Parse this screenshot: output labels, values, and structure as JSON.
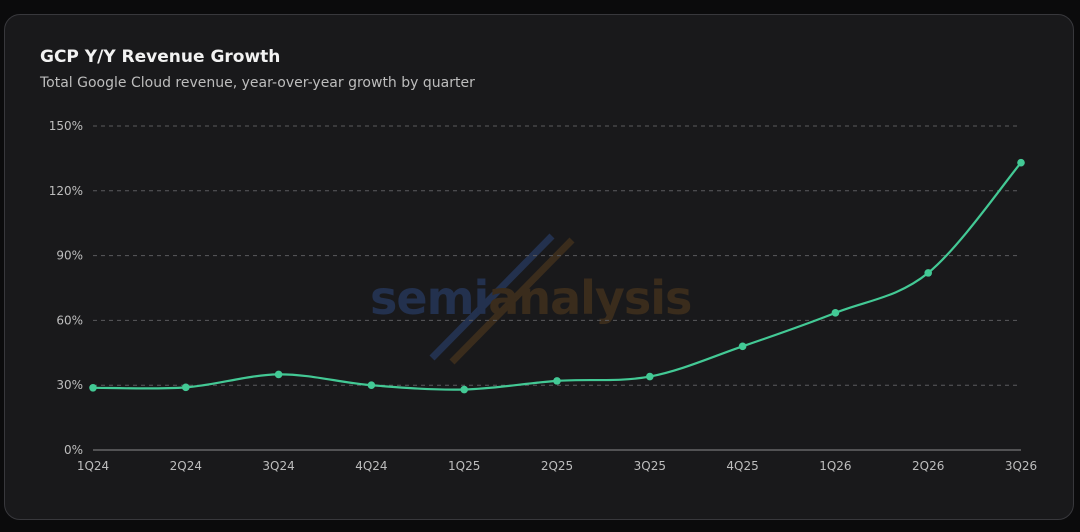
{
  "header": {
    "title": "GCP Y/Y Revenue Growth",
    "subtitle": "Total Google Cloud revenue, year-over-year growth by quarter"
  },
  "watermark": {
    "text_left": "semi",
    "text_right": "analysis"
  },
  "colors": {
    "line": "#43c995",
    "grid": "#5a5a5e",
    "axis": "#8a8a8e",
    "watermark_blue": "#23314e",
    "watermark_orange": "#3a2c1c"
  },
  "chart_data": {
    "type": "line",
    "title": "GCP Y/Y Revenue Growth",
    "subtitle": "Total Google Cloud revenue, year-over-year growth by quarter",
    "xlabel": "",
    "ylabel": "",
    "categories": [
      "1Q24",
      "2Q24",
      "3Q24",
      "4Q24",
      "1Q25",
      "2Q25",
      "3Q25",
      "4Q25",
      "1Q26",
      "2Q26",
      "3Q26"
    ],
    "series": [
      {
        "values": [
          28.8,
          29.0,
          35.0,
          30.0,
          28.0,
          32.0,
          34.0,
          48.0,
          63.5,
          82.0,
          133.0
        ]
      }
    ],
    "yticks": [
      0,
      30,
      60,
      90,
      120,
      150
    ],
    "ytick_labels": [
      "0%",
      "30%",
      "60%",
      "90%",
      "120%",
      "150%"
    ],
    "ylim": [
      0,
      150
    ],
    "grid": true,
    "legend": "none"
  }
}
